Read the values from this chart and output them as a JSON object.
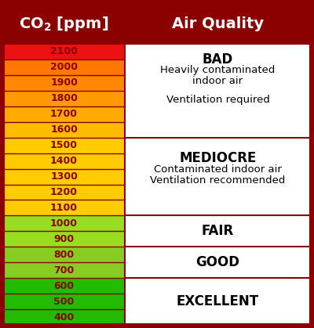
{
  "header_bg": "#8B0000",
  "border_color": "#8B0000",
  "col1_header_line1": "CO",
  "col1_header_sub": "2",
  "col1_header_line2": " [ppm]",
  "col2_header": "Air Quality",
  "rows": [
    {
      "value": "2100",
      "color": "#EE1111",
      "text_color": "#8B0000"
    },
    {
      "value": "2000",
      "color": "#FF7700",
      "text_color": "#8B0000"
    },
    {
      "value": "1900",
      "color": "#FF8800",
      "text_color": "#8B0000"
    },
    {
      "value": "1800",
      "color": "#FF9900",
      "text_color": "#8B0000"
    },
    {
      "value": "1700",
      "color": "#FFAA00",
      "text_color": "#8B0000"
    },
    {
      "value": "1600",
      "color": "#FFBB00",
      "text_color": "#8B0000"
    },
    {
      "value": "1500",
      "color": "#FFCC00",
      "text_color": "#8B0000"
    },
    {
      "value": "1400",
      "color": "#FFCC00",
      "text_color": "#8B0000"
    },
    {
      "value": "1300",
      "color": "#FFCC00",
      "text_color": "#8B0000"
    },
    {
      "value": "1200",
      "color": "#FFCC00",
      "text_color": "#8B0000"
    },
    {
      "value": "1100",
      "color": "#FFCC00",
      "text_color": "#8B0000"
    },
    {
      "value": "1000",
      "color": "#99DD22",
      "text_color": "#8B0000"
    },
    {
      "value": "900",
      "color": "#99DD22",
      "text_color": "#8B0000"
    },
    {
      "value": "800",
      "color": "#88CC22",
      "text_color": "#8B0000"
    },
    {
      "value": "700",
      "color": "#88CC22",
      "text_color": "#8B0000"
    },
    {
      "value": "600",
      "color": "#22BB00",
      "text_color": "#8B0000"
    },
    {
      "value": "500",
      "color": "#22BB00",
      "text_color": "#8B0000"
    },
    {
      "value": "400",
      "color": "#22BB00",
      "text_color": "#8B0000"
    }
  ],
  "groups": [
    {
      "title": "BAD",
      "lines": [
        "Heavily contaminated",
        "indoor air",
        "",
        "Ventilation required"
      ],
      "start": 0,
      "end": 5
    },
    {
      "title": "MEDIOCRE",
      "lines": [
        "Contaminated indoor air",
        "Ventilation recommended"
      ],
      "start": 6,
      "end": 10
    },
    {
      "title": "FAIR",
      "lines": [],
      "start": 11,
      "end": 12
    },
    {
      "title": "GOOD",
      "lines": [],
      "start": 13,
      "end": 14
    },
    {
      "title": "EXCELLENT",
      "lines": [],
      "start": 15,
      "end": 17
    }
  ],
  "figsize": [
    4.0,
    4.19
  ],
  "dpi": 100
}
